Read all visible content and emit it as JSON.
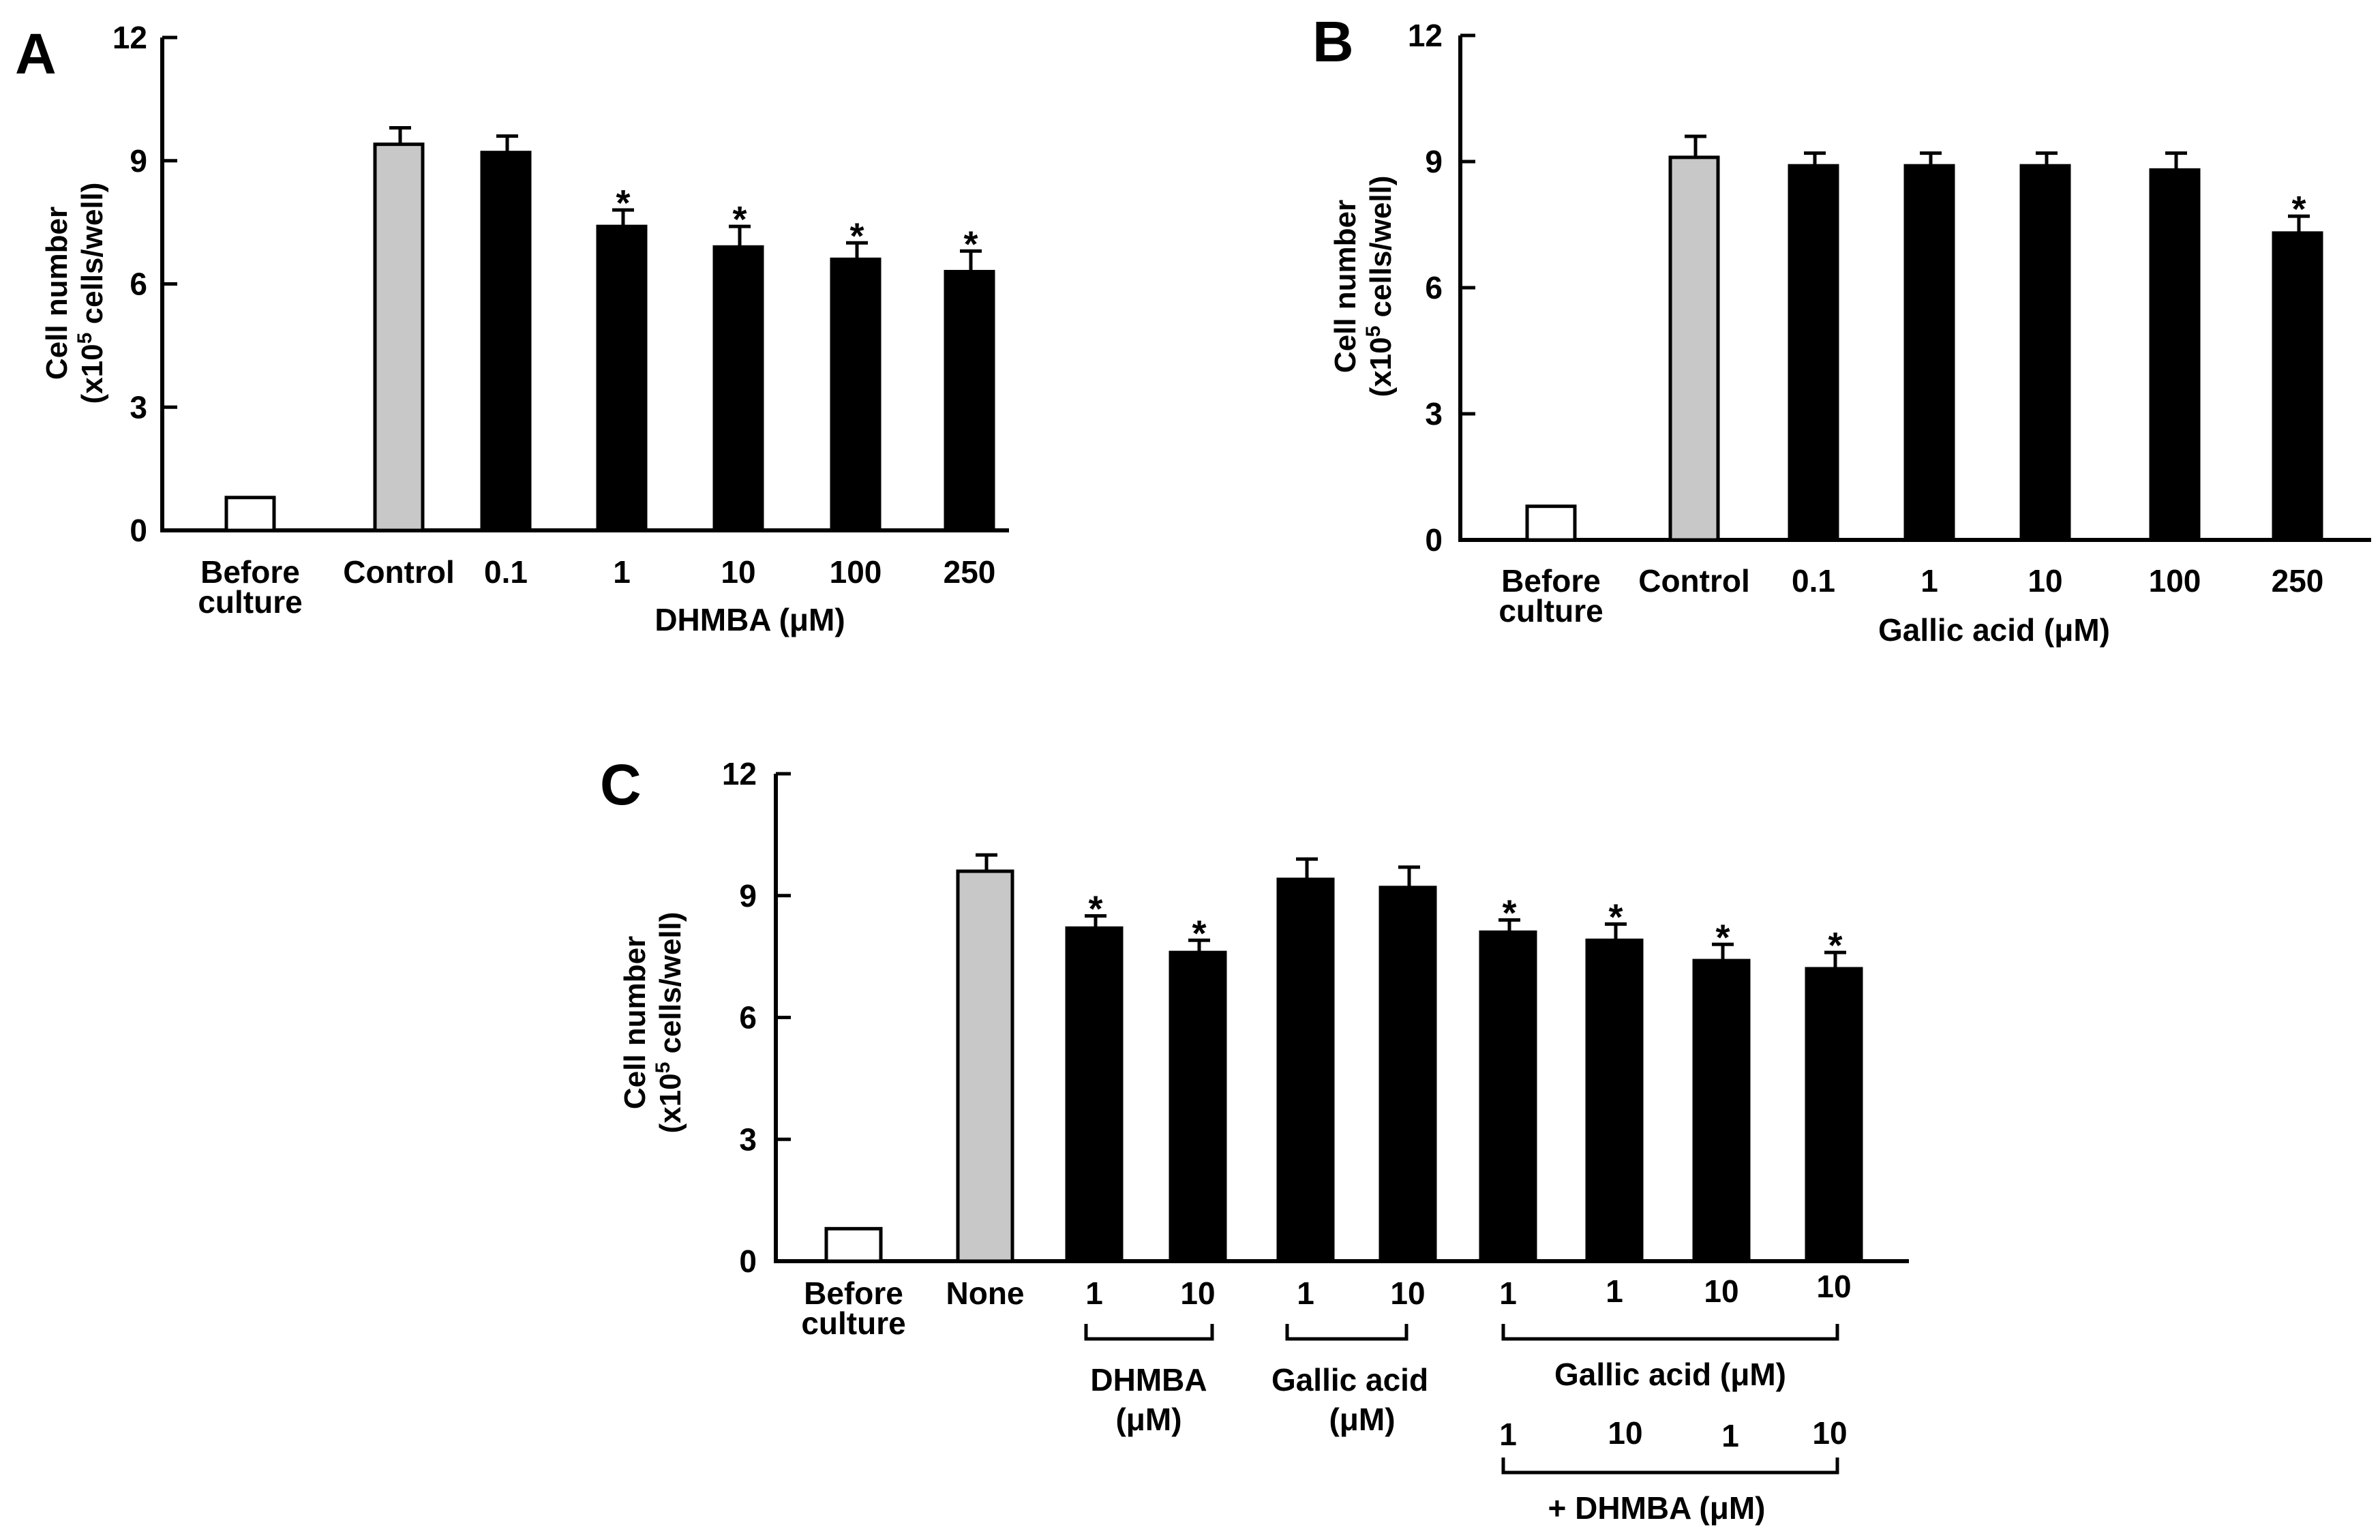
{
  "colors": {
    "control": "#c8c8c8",
    "before": "#ffffff",
    "treated": "#000000",
    "stroke": "#000000"
  },
  "chart_data": [
    {
      "type": "bar",
      "panel": "A",
      "ylabel_line1": "Cell number",
      "ylabel_line2_pre": "(x10",
      "ylabel_sup": "5",
      "ylabel_line2_post": " cells/well)",
      "ylim": [
        0,
        12
      ],
      "yticks": [
        "0",
        "3",
        "6",
        "9",
        "12"
      ],
      "xlabel": "DHMBA (μM)",
      "categories": [
        {
          "lines": [
            "Before",
            "culture"
          ]
        },
        {
          "lines": [
            "Control"
          ]
        },
        {
          "lines": [
            "0.1"
          ]
        },
        {
          "lines": [
            "1"
          ]
        },
        {
          "lines": [
            "10"
          ]
        },
        {
          "lines": [
            "100"
          ]
        },
        {
          "lines": [
            "250"
          ]
        }
      ],
      "values": [
        0.8,
        9.4,
        9.2,
        7.4,
        6.9,
        6.6,
        6.3
      ],
      "errors": [
        0,
        0.4,
        0.4,
        0.4,
        0.5,
        0.4,
        0.5
      ],
      "fills": [
        "before",
        "control",
        "treated",
        "treated",
        "treated",
        "treated",
        "treated"
      ],
      "significant": [
        "",
        "",
        "",
        "*",
        "*",
        "*",
        "*"
      ]
    },
    {
      "type": "bar",
      "panel": "B",
      "ylabel_line1": "Cell number",
      "ylabel_line2_pre": "(x10",
      "ylabel_sup": "5",
      "ylabel_line2_post": " cells/well)",
      "ylim": [
        0,
        12
      ],
      "yticks": [
        "0",
        "3",
        "6",
        "9",
        "12"
      ],
      "xlabel": "Gallic acid (μM)",
      "categories": [
        {
          "lines": [
            "Before",
            "culture"
          ]
        },
        {
          "lines": [
            "Control"
          ]
        },
        {
          "lines": [
            "0.1"
          ]
        },
        {
          "lines": [
            "1"
          ]
        },
        {
          "lines": [
            "10"
          ]
        },
        {
          "lines": [
            "100"
          ]
        },
        {
          "lines": [
            "250"
          ]
        }
      ],
      "values": [
        0.8,
        9.1,
        8.9,
        8.9,
        8.9,
        8.8,
        7.3
      ],
      "errors": [
        0,
        0.5,
        0.3,
        0.3,
        0.3,
        0.4,
        0.4
      ],
      "fills": [
        "before",
        "control",
        "treated",
        "treated",
        "treated",
        "treated",
        "treated"
      ],
      "significant": [
        "",
        "",
        "",
        "",
        "",
        "",
        "*"
      ]
    },
    {
      "type": "bar",
      "panel": "C",
      "ylabel_line1": "Cell number",
      "ylabel_line2_pre": "(x10",
      "ylabel_sup": "5",
      "ylabel_line2_post": " cells/well)",
      "ylim": [
        0,
        12
      ],
      "yticks": [
        "0",
        "3",
        "6",
        "9",
        "12"
      ],
      "categories": [
        {
          "lines": [
            "Before",
            "culture"
          ]
        },
        {
          "lines": [
            "None"
          ]
        },
        {
          "lines": [
            "1"
          ]
        },
        {
          "lines": [
            "10"
          ]
        },
        {
          "lines": [
            "1"
          ]
        },
        {
          "lines": [
            "10"
          ]
        },
        {
          "lines": [
            "1"
          ]
        },
        {
          "lines": [
            "1"
          ]
        },
        {
          "lines": [
            "10"
          ]
        },
        {
          "lines": [
            "10"
          ]
        }
      ],
      "values": [
        0.8,
        9.6,
        8.2,
        7.6,
        9.4,
        9.2,
        8.1,
        7.9,
        7.4,
        7.2
      ],
      "errors": [
        0,
        0.4,
        0.3,
        0.3,
        0.5,
        0.5,
        0.3,
        0.4,
        0.4,
        0.4
      ],
      "fills": [
        "before",
        "control",
        "treated",
        "treated",
        "treated",
        "treated",
        "treated",
        "treated",
        "treated",
        "treated"
      ],
      "significant": [
        "",
        "",
        "*",
        "*",
        "",
        "",
        "*",
        "*",
        "*",
        "*"
      ],
      "group_labels": {
        "dhmba": [
          "DHMBA",
          "(μM)"
        ],
        "gallic": [
          "Gallic acid",
          "(μM)"
        ],
        "combo_gallic": "Gallic acid (μM)",
        "combo_dhmba_values": [
          "1",
          "10",
          "1",
          "10"
        ],
        "combo_dhmba": "+ DHMBA (μM)"
      }
    }
  ]
}
